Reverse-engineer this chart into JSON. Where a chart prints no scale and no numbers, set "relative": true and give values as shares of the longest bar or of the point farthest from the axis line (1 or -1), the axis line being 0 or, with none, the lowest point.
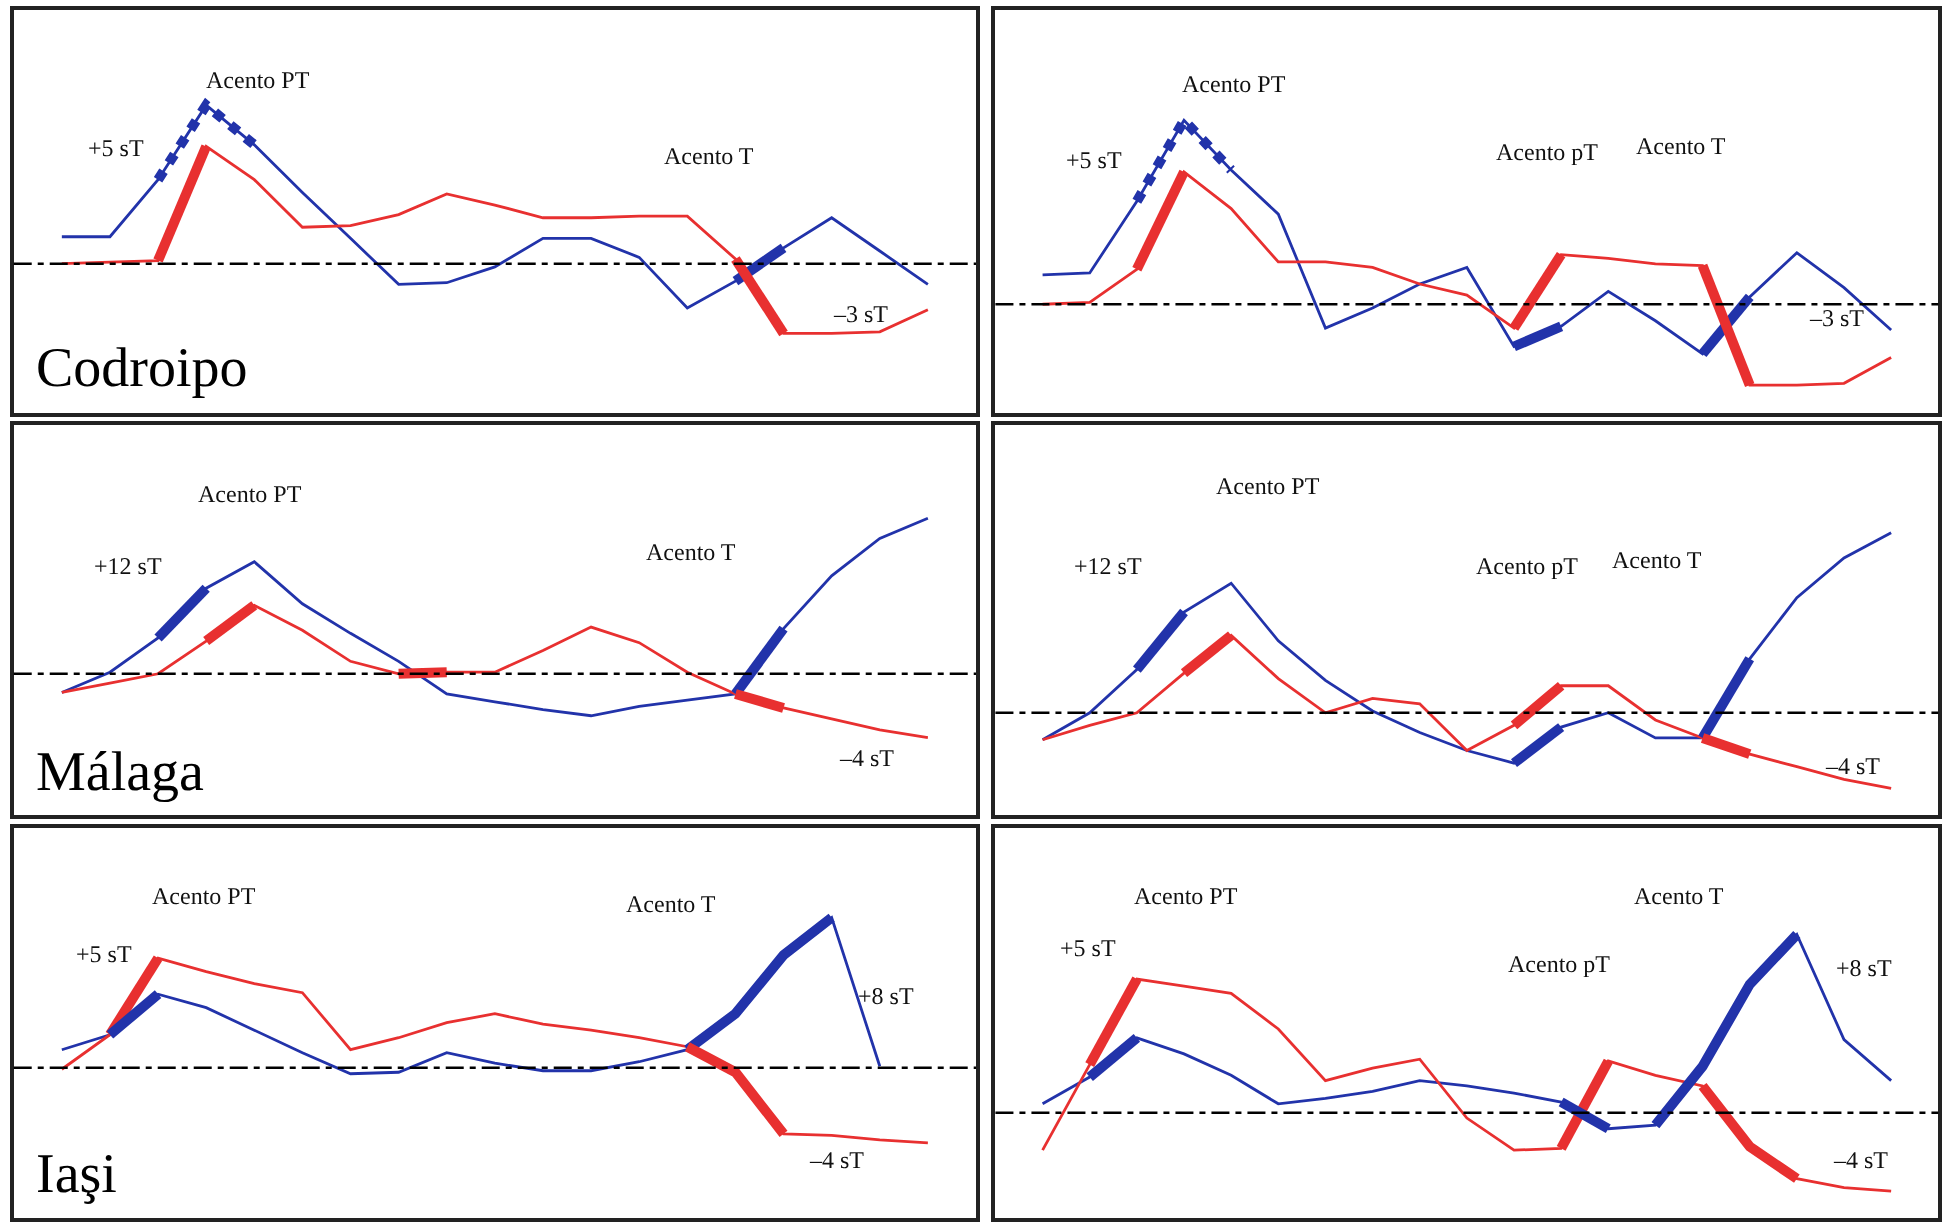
{
  "chart_data": [
    {
      "type": "line",
      "title": "Codroipo",
      "relative": true,
      "ref_lines": [
        {
          "axis": "y",
          "value": 0,
          "color": "#000000",
          "line_style": "dashed"
        }
      ],
      "categories": [
        null,
        null,
        null,
        null,
        null,
        null,
        null,
        null,
        null,
        null,
        null,
        null,
        null,
        null,
        null,
        null,
        null,
        null,
        null
      ],
      "annotations": [
        "Acento PT",
        "Acento T",
        "+5 sT",
        "–3 sT"
      ],
      "series": [
        {
          "color": "#2233aa",
          "values": [
            0.17,
            0.17,
            0.53,
            1.0,
            0.75,
            0.45,
            0.16,
            -0.13,
            -0.12,
            -0.02,
            0.16,
            0.16,
            0.04,
            -0.28,
            -0.11,
            0.1,
            0.29,
            0.08,
            -0.13
          ]
        },
        {
          "color": "#e83030",
          "values": [
            0,
            0.01,
            0.02,
            0.74,
            0.53,
            0.23,
            0.24,
            0.31,
            0.44,
            0.37,
            0.29,
            0.29,
            0.3,
            0.3,
            0.03,
            -0.44,
            -0.44,
            -0.43,
            -0.29
          ]
        },
        {
          "color": "#2233aa",
          "line_style": "dotted",
          "values": [
            null,
            null,
            0.53,
            1.0,
            0.75,
            null,
            null,
            null,
            null,
            null,
            null,
            null,
            null,
            null,
            null,
            null,
            null,
            null,
            null
          ]
        },
        {
          "color": "#e83030",
          "values": [
            null,
            null,
            0.02,
            0.74,
            null,
            null,
            null,
            null,
            null,
            null,
            null,
            null,
            null,
            null,
            null,
            null,
            null,
            null,
            null
          ]
        },
        {
          "color": "#2233aa",
          "values": [
            null,
            null,
            null,
            null,
            null,
            null,
            null,
            null,
            null,
            null,
            null,
            null,
            null,
            null,
            -0.11,
            0.1,
            null,
            null,
            null
          ]
        },
        {
          "color": "#e83030",
          "values": [
            null,
            null,
            null,
            null,
            null,
            null,
            null,
            null,
            null,
            null,
            null,
            null,
            null,
            null,
            0.03,
            -0.44,
            null,
            null,
            null
          ]
        }
      ]
    },
    {
      "type": "line",
      "relative": true,
      "ref_lines": [
        {
          "axis": "y",
          "value": 0,
          "color": "#000000",
          "line_style": "dashed"
        }
      ],
      "categories": [
        null,
        null,
        null,
        null,
        null,
        null,
        null,
        null,
        null,
        null,
        null,
        null,
        null,
        null,
        null,
        null,
        null,
        null,
        null
      ],
      "annotations": [
        "Acento PT",
        "Acento pT",
        "Acento T",
        "+5 sT",
        "–3 sT"
      ],
      "series": [
        {
          "color": "#2233aa",
          "values": [
            0.16,
            0.17,
            0.56,
            1.0,
            0.73,
            0.49,
            -0.13,
            -0.02,
            0.11,
            0.2,
            -0.23,
            -0.12,
            0.07,
            -0.09,
            -0.27,
            0.04,
            0.28,
            0.09,
            -0.14
          ]
        },
        {
          "color": "#e83030",
          "values": [
            0,
            0.01,
            0.19,
            0.72,
            0.52,
            0.23,
            0.23,
            0.2,
            0.11,
            0.05,
            -0.13,
            0.27,
            0.25,
            0.22,
            0.21,
            -0.44,
            -0.44,
            -0.43,
            -0.29
          ]
        },
        {
          "color": "#2233aa",
          "line_style": "dotted",
          "values": [
            null,
            null,
            0.56,
            1.0,
            0.73,
            null,
            null,
            null,
            null,
            null,
            null,
            null,
            null,
            null,
            null,
            null,
            null,
            null,
            null
          ]
        },
        {
          "color": "#e83030",
          "values": [
            null,
            null,
            0.19,
            0.72,
            null,
            null,
            null,
            null,
            null,
            null,
            null,
            null,
            null,
            null,
            null,
            null,
            null,
            null,
            null
          ]
        },
        {
          "color": "#e83030",
          "values": [
            null,
            null,
            null,
            null,
            null,
            null,
            null,
            null,
            null,
            null,
            -0.13,
            0.27,
            null,
            null,
            null,
            null,
            null,
            null,
            null
          ]
        },
        {
          "color": "#2233aa",
          "values": [
            null,
            null,
            null,
            null,
            null,
            null,
            null,
            null,
            null,
            null,
            -0.23,
            -0.12,
            null,
            null,
            null,
            null,
            null,
            null,
            null
          ]
        },
        {
          "color": "#2233aa",
          "values": [
            null,
            null,
            null,
            null,
            null,
            null,
            null,
            null,
            null,
            null,
            null,
            null,
            null,
            null,
            -0.27,
            0.04,
            null,
            null,
            null
          ]
        },
        {
          "color": "#e83030",
          "values": [
            null,
            null,
            null,
            null,
            null,
            null,
            null,
            null,
            null,
            null,
            null,
            null,
            null,
            null,
            0.21,
            -0.44,
            null,
            null,
            null
          ]
        }
      ]
    },
    {
      "type": "line",
      "title": "Málaga",
      "relative": true,
      "ref_lines": [
        {
          "axis": "y",
          "value": 0,
          "color": "#000000",
          "line_style": "dashed"
        }
      ],
      "categories": [
        null,
        null,
        null,
        null,
        null,
        null,
        null,
        null,
        null,
        null,
        null,
        null,
        null,
        null,
        null,
        null,
        null,
        null,
        null
      ],
      "annotations": [
        "Acento PT",
        "Acento T",
        "+12 sT",
        "–4 sT"
      ],
      "series": [
        {
          "color": "#2233aa",
          "values": [
            -0.12,
            0.01,
            0.23,
            0.55,
            0.72,
            0.45,
            0.26,
            0.08,
            -0.13,
            -0.18,
            -0.23,
            -0.27,
            -0.21,
            -0.17,
            -0.13,
            0.29,
            0.63,
            0.87,
            1.0
          ]
        },
        {
          "color": "#e83030",
          "values": [
            -0.12,
            -0.06,
            0,
            0.21,
            0.44,
            0.28,
            0.08,
            0,
            0.01,
            0.01,
            0.15,
            0.3,
            0.2,
            0.01,
            -0.13,
            -0.22,
            -0.29,
            -0.36,
            -0.41
          ]
        },
        {
          "color": "#2233aa",
          "values": [
            null,
            null,
            0.23,
            0.55,
            null,
            null,
            null,
            null,
            null,
            null,
            null,
            null,
            null,
            null,
            null,
            null,
            null,
            null,
            null
          ]
        },
        {
          "color": "#e83030",
          "values": [
            null,
            null,
            null,
            0.21,
            0.44,
            null,
            null,
            null,
            null,
            null,
            null,
            null,
            null,
            null,
            null,
            null,
            null,
            null,
            null
          ]
        },
        {
          "color": "#e83030",
          "values": [
            null,
            null,
            null,
            null,
            null,
            null,
            null,
            0,
            0.01,
            null,
            null,
            null,
            null,
            null,
            null,
            null,
            null,
            null,
            null
          ]
        },
        {
          "color": "#2233aa",
          "values": [
            null,
            null,
            null,
            null,
            null,
            null,
            null,
            null,
            null,
            null,
            null,
            null,
            null,
            null,
            -0.13,
            0.29,
            null,
            null,
            null
          ]
        },
        {
          "color": "#e83030",
          "values": [
            null,
            null,
            null,
            null,
            null,
            null,
            null,
            null,
            null,
            null,
            null,
            null,
            null,
            null,
            -0.13,
            -0.22,
            null,
            null,
            null
          ]
        }
      ]
    },
    {
      "type": "line",
      "relative": true,
      "ref_lines": [
        {
          "axis": "y",
          "value": 0,
          "color": "#000000",
          "line_style": "dashed"
        }
      ],
      "categories": [
        null,
        null,
        null,
        null,
        null,
        null,
        null,
        null,
        null,
        null,
        null,
        null,
        null,
        null,
        null,
        null,
        null,
        null,
        null
      ],
      "annotations": [
        "Acento PT",
        "Acento pT",
        "Acento T",
        "+12 sT",
        "–4 sT"
      ],
      "series": [
        {
          "color": "#2233aa",
          "values": [
            -0.15,
            0,
            0.24,
            0.56,
            0.72,
            0.4,
            0.18,
            0.01,
            -0.11,
            -0.21,
            -0.28,
            -0.08,
            0,
            -0.14,
            -0.14,
            0.3,
            0.64,
            0.86,
            1.0
          ]
        },
        {
          "color": "#e83030",
          "values": [
            -0.15,
            -0.07,
            0,
            0.22,
            0.43,
            0.19,
            0,
            0.08,
            0.05,
            -0.21,
            -0.07,
            0.15,
            0.15,
            -0.04,
            -0.14,
            -0.23,
            -0.3,
            -0.37,
            -0.42
          ]
        },
        {
          "color": "#2233aa",
          "values": [
            null,
            null,
            0.24,
            0.56,
            null,
            null,
            null,
            null,
            null,
            null,
            null,
            null,
            null,
            null,
            null,
            null,
            null,
            null,
            null
          ]
        },
        {
          "color": "#e83030",
          "values": [
            null,
            null,
            null,
            0.22,
            0.43,
            null,
            null,
            null,
            null,
            null,
            null,
            null,
            null,
            null,
            null,
            null,
            null,
            null,
            null
          ]
        },
        {
          "color": "#e83030",
          "values": [
            null,
            null,
            null,
            null,
            null,
            null,
            null,
            null,
            null,
            null,
            -0.07,
            0.15,
            null,
            null,
            null,
            null,
            null,
            null,
            null
          ]
        },
        {
          "color": "#2233aa",
          "values": [
            null,
            null,
            null,
            null,
            null,
            null,
            null,
            null,
            null,
            null,
            -0.28,
            -0.08,
            null,
            null,
            null,
            null,
            null,
            null,
            null
          ]
        },
        {
          "color": "#2233aa",
          "values": [
            null,
            null,
            null,
            null,
            null,
            null,
            null,
            null,
            null,
            null,
            null,
            null,
            null,
            null,
            -0.14,
            0.3,
            null,
            null,
            null
          ]
        },
        {
          "color": "#e83030",
          "values": [
            null,
            null,
            null,
            null,
            null,
            null,
            null,
            null,
            null,
            null,
            null,
            null,
            null,
            null,
            -0.14,
            -0.23,
            null,
            null,
            null
          ]
        }
      ]
    },
    {
      "type": "line",
      "title": "Iaşi",
      "relative": true,
      "ref_lines": [
        {
          "axis": "y",
          "value": 0,
          "color": "#000000",
          "line_style": "dashed"
        }
      ],
      "categories": [
        null,
        null,
        null,
        null,
        null,
        null,
        null,
        null,
        null,
        null,
        null,
        null,
        null,
        null,
        null,
        null,
        null,
        null,
        null
      ],
      "annotations": [
        "Acento PT",
        "Acento T",
        "+5 sT",
        "+8 sT",
        "–4 sT"
      ],
      "series": [
        {
          "color": "#2233aa",
          "values": [
            0.12,
            0.22,
            0.49,
            0.4,
            0.25,
            0.1,
            -0.04,
            -0.03,
            0.1,
            0.03,
            -0.02,
            -0.02,
            0.04,
            0.12,
            0.36,
            0.75,
            1.0,
            0.01,
            null
          ]
        },
        {
          "color": "#e83030",
          "values": [
            -0.01,
            0.22,
            0.73,
            0.64,
            0.56,
            0.5,
            0.12,
            0.2,
            0.3,
            0.36,
            0.29,
            0.25,
            0.2,
            0.14,
            -0.03,
            -0.44,
            -0.45,
            -0.48,
            -0.5
          ]
        },
        {
          "color": "#e83030",
          "values": [
            null,
            0.22,
            0.73,
            null,
            null,
            null,
            null,
            null,
            null,
            null,
            null,
            null,
            null,
            null,
            null,
            null,
            null,
            null,
            null
          ]
        },
        {
          "color": "#2233aa",
          "values": [
            null,
            0.22,
            0.49,
            null,
            null,
            null,
            null,
            null,
            null,
            null,
            null,
            null,
            null,
            null,
            null,
            null,
            null,
            null,
            null
          ]
        },
        {
          "color": "#2233aa",
          "values": [
            null,
            null,
            null,
            null,
            null,
            null,
            null,
            null,
            null,
            null,
            null,
            null,
            null,
            0.12,
            0.36,
            0.75,
            1.0,
            null,
            null
          ]
        },
        {
          "color": "#e83030",
          "values": [
            null,
            null,
            null,
            null,
            null,
            null,
            null,
            null,
            null,
            null,
            null,
            null,
            null,
            0.14,
            -0.03,
            -0.44,
            null,
            null,
            null
          ]
        }
      ]
    },
    {
      "type": "line",
      "relative": true,
      "ref_lines": [
        {
          "axis": "y",
          "value": 0,
          "color": "#000000",
          "line_style": "dashed"
        }
      ],
      "categories": [
        null,
        null,
        null,
        null,
        null,
        null,
        null,
        null,
        null,
        null,
        null,
        null,
        null,
        null,
        null,
        null,
        null,
        null,
        null
      ],
      "annotations": [
        "Acento PT",
        "Acento pT",
        "Acento T",
        "+5 sT",
        "+8 sT",
        "–4 sT"
      ],
      "series": [
        {
          "color": "#2233aa",
          "values": [
            0.05,
            0.2,
            0.42,
            0.33,
            0.21,
            0.05,
            0.08,
            0.12,
            0.18,
            0.15,
            0.11,
            0.06,
            -0.09,
            -0.07,
            0.26,
            0.72,
            1.0,
            0.41,
            0.18
          ]
        },
        {
          "color": "#e83030",
          "values": [
            -0.21,
            0.27,
            0.75,
            0.71,
            0.67,
            0.47,
            0.18,
            0.25,
            0.3,
            -0.03,
            -0.21,
            -0.2,
            0.29,
            0.21,
            0.15,
            -0.19,
            -0.37,
            -0.42,
            -0.44
          ]
        },
        {
          "color": "#e83030",
          "values": [
            null,
            0.27,
            0.75,
            null,
            null,
            null,
            null,
            null,
            null,
            null,
            null,
            null,
            null,
            null,
            null,
            null,
            null,
            null,
            null
          ]
        },
        {
          "color": "#2233aa",
          "values": [
            null,
            0.2,
            0.42,
            null,
            null,
            null,
            null,
            null,
            null,
            null,
            null,
            null,
            null,
            null,
            null,
            null,
            null,
            null,
            null
          ]
        },
        {
          "color": "#e83030",
          "values": [
            null,
            null,
            null,
            null,
            null,
            null,
            null,
            null,
            null,
            null,
            null,
            -0.2,
            0.29,
            null,
            null,
            null,
            null,
            null,
            null
          ]
        },
        {
          "color": "#2233aa",
          "values": [
            null,
            null,
            null,
            null,
            null,
            null,
            null,
            null,
            null,
            null,
            null,
            0.06,
            -0.09,
            null,
            null,
            null,
            null,
            null,
            null
          ]
        },
        {
          "color": "#2233aa",
          "values": [
            null,
            null,
            null,
            null,
            null,
            null,
            null,
            null,
            null,
            null,
            null,
            null,
            null,
            -0.07,
            0.26,
            0.72,
            1.0,
            null,
            null
          ]
        },
        {
          "color": "#e83030",
          "values": [
            null,
            null,
            null,
            null,
            null,
            null,
            null,
            null,
            null,
            null,
            null,
            null,
            null,
            null,
            0.15,
            -0.19,
            -0.37,
            null,
            null
          ]
        }
      ]
    }
  ]
}
